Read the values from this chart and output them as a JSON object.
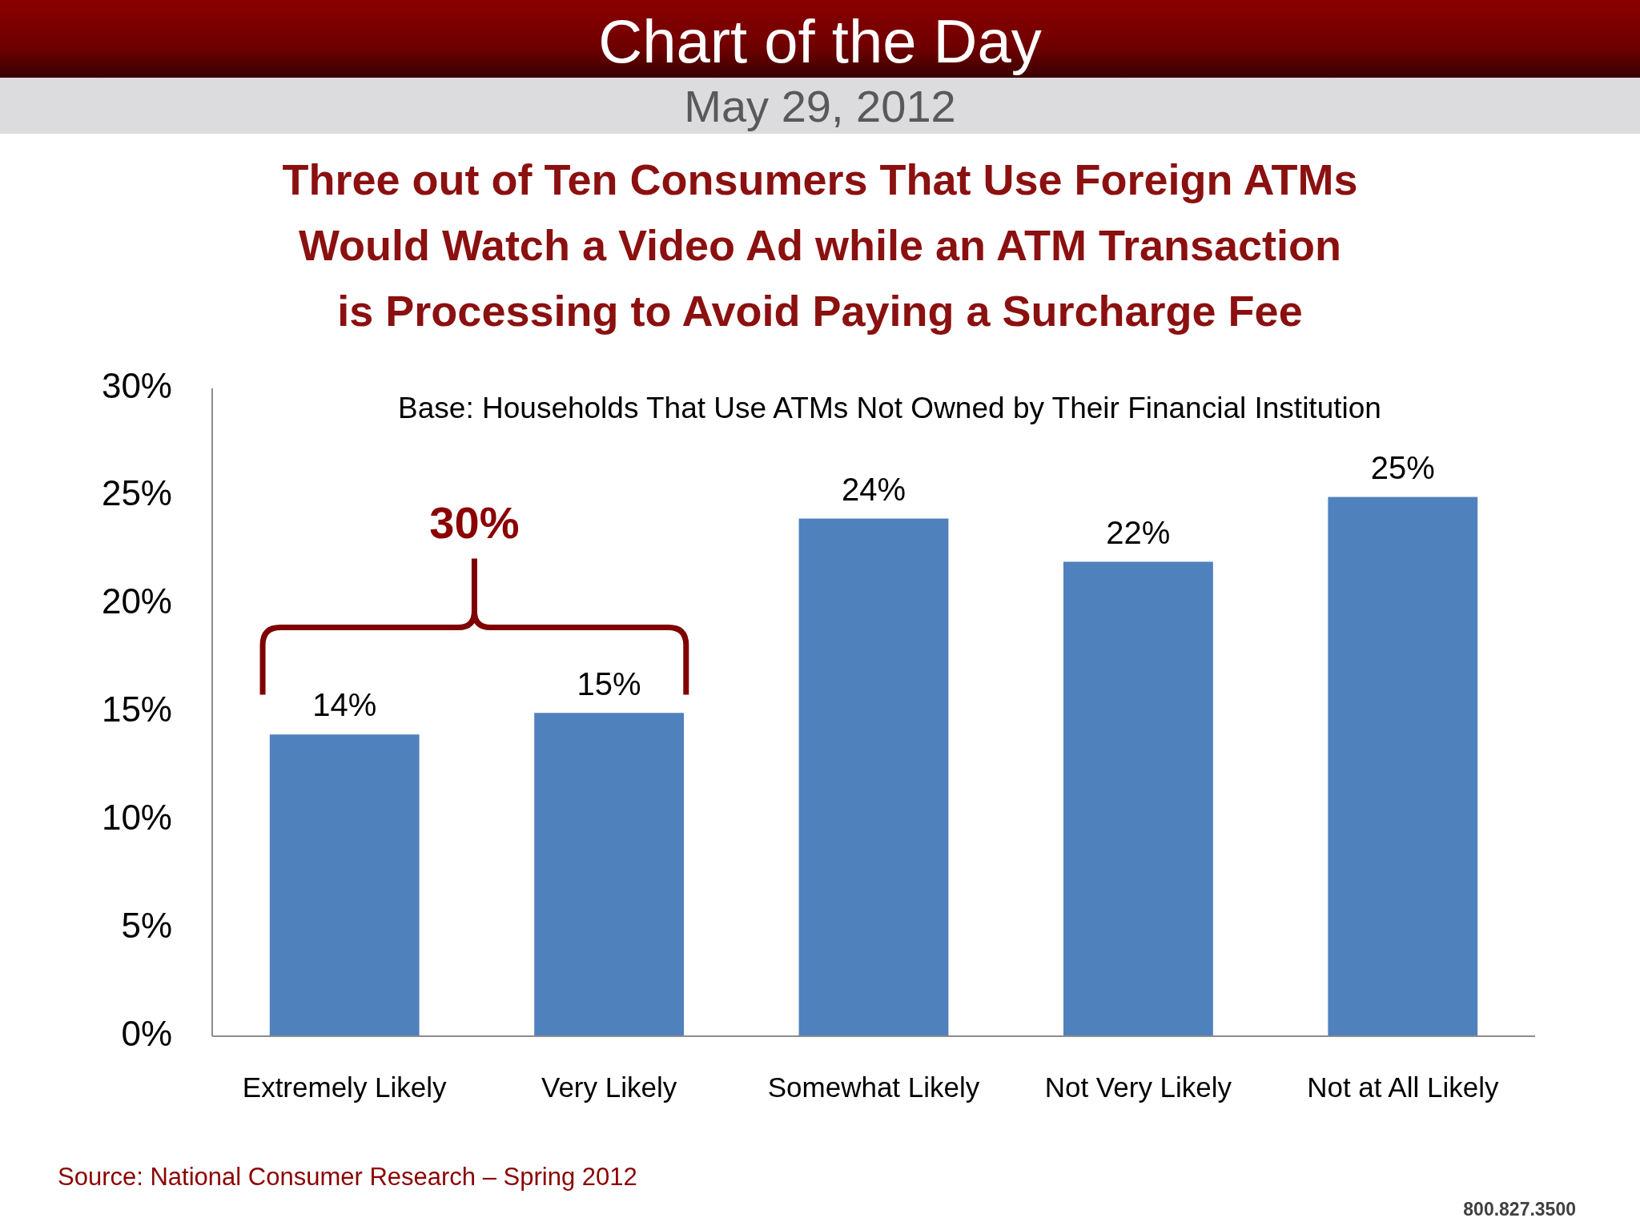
{
  "chart_data": {
    "type": "bar",
    "title": "Chart of the Day",
    "subtitle": "May 29, 2012",
    "categories": [
      "Extremely Likely",
      "Very Likely",
      "Somewhat Likely",
      "Not Very Likely",
      "Not at All Likely"
    ],
    "values": [
      14,
      15,
      24,
      22,
      25
    ],
    "color": "#4f81bd",
    "value_labels": [
      "14%",
      "15%",
      "24%",
      "22%",
      "25%"
    ],
    "ylim": [
      0,
      30
    ],
    "yticks": [
      {
        "value": 0,
        "label": "0%"
      },
      {
        "value": 5,
        "label": "5%"
      },
      {
        "value": 10,
        "label": "10%"
      },
      {
        "value": 15,
        "label": "15%"
      },
      {
        "value": 20,
        "label": "20%"
      },
      {
        "value": 25,
        "label": "25%"
      },
      {
        "value": 30,
        "label": "30%"
      }
    ],
    "annotations": [
      "Three out of Ten Consumers That Use Foreign ATMs Would Watch a Video Ad while an ATM Transaction is Processing to Avoid Paying a Surcharge Fee",
      "Base: Households That Use ATMs Not Owned by Their Financial Institution",
      "30%",
      "Source: National Consumer Research – Spring 2012",
      "800.827.3500"
    ]
  }
}
